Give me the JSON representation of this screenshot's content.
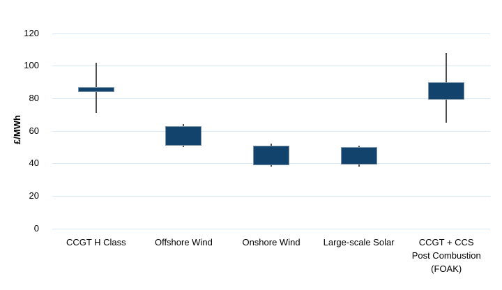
{
  "chart_data": {
    "type": "box",
    "title": "",
    "ylabel": "£/MWh",
    "xlabel": "",
    "ylim": [
      0,
      120
    ],
    "yticks": [
      0,
      20,
      40,
      60,
      80,
      100,
      120
    ],
    "grid": "horizontal",
    "legend": "none",
    "categories": [
      "CCGT H Class",
      "Offshore Wind",
      "Onshore Wind",
      "Large-scale Solar",
      "CCGT + CCS Post Combustion (FOAK)"
    ],
    "points": [
      {
        "label": "CCGT H Class",
        "label_lines": [
          "CCGT H Class"
        ],
        "box_low": 84,
        "box_high": 87,
        "whisker_low": 71,
        "whisker_high": 102
      },
      {
        "label": "Offshore Wind",
        "label_lines": [
          "Offshore Wind"
        ],
        "box_low": 51,
        "box_high": 63,
        "whisker_low": 50,
        "whisker_high": 64
      },
      {
        "label": "Onshore Wind",
        "label_lines": [
          "Onshore Wind"
        ],
        "box_low": 39,
        "box_high": 51,
        "whisker_low": 38,
        "whisker_high": 52
      },
      {
        "label": "Large-scale Solar",
        "label_lines": [
          "Large-scale Solar"
        ],
        "box_low": 39,
        "box_high": 50,
        "whisker_low": 38,
        "whisker_high": 51
      },
      {
        "label": "CCGT + CCS Post Combustion (FOAK)",
        "label_lines": [
          "CCGT + CCS",
          "Post Combustion",
          "(FOAK)"
        ],
        "box_low": 79,
        "box_high": 90,
        "whisker_low": 65,
        "whisker_high": 108
      }
    ],
    "colors": {
      "box_fill": "#12436d",
      "box_border": "#7d93a8",
      "whisker": "#4f4f4f",
      "gridline": "#d9e8f7",
      "text": "#000000",
      "background": "#ffffff"
    }
  }
}
